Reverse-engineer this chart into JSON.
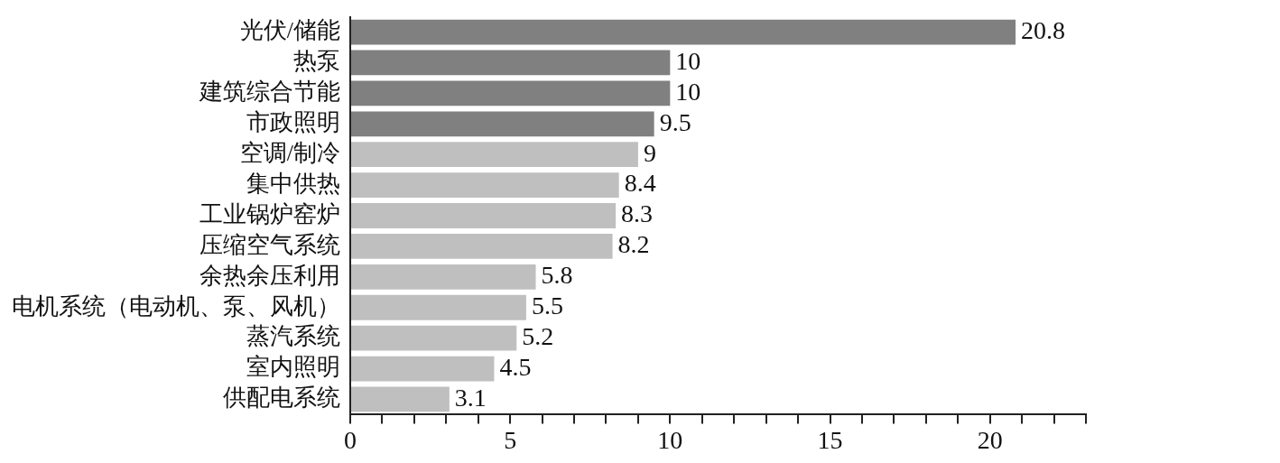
{
  "chart_data": {
    "type": "bar",
    "orientation": "horizontal",
    "categories": [
      "光伏/储能",
      "热泵",
      "建筑综合节能",
      "市政照明",
      "空调/制冷",
      "集中供热",
      "工业锅炉窑炉",
      "压缩空气系统",
      "余热余压利用",
      "电机系统（电动机、泵、风机）",
      "蒸汽系统",
      "室内照明",
      "供配电系统"
    ],
    "values": [
      20.8,
      10,
      10,
      9.5,
      9,
      8.4,
      8.3,
      8.2,
      5.8,
      5.5,
      5.2,
      4.5,
      3.1
    ],
    "colors": [
      "#808080",
      "#808080",
      "#808080",
      "#808080",
      "#bfbfbf",
      "#bfbfbf",
      "#bfbfbf",
      "#bfbfbf",
      "#bfbfbf",
      "#bfbfbf",
      "#bfbfbf",
      "#bfbfbf",
      "#bfbfbf"
    ],
    "xlim": [
      0,
      23
    ],
    "xticks": [
      0,
      {
        "value": 1,
        "label": null
      },
      {
        "value": 2,
        "label": null
      },
      {
        "value": 3,
        "label": null
      },
      {
        "value": 4,
        "label": null
      },
      5,
      {
        "value": 6,
        "label": null
      },
      {
        "value": 7,
        "label": null
      },
      {
        "value": 8,
        "label": null
      },
      {
        "value": 9,
        "label": null
      },
      10,
      {
        "value": 11,
        "label": null
      },
      {
        "value": 12,
        "label": null
      },
      {
        "value": 13,
        "label": null
      },
      {
        "value": 14,
        "label": null
      },
      15,
      {
        "value": 16,
        "label": null
      },
      {
        "value": 17,
        "label": null
      },
      {
        "value": 18,
        "label": null
      },
      {
        "value": 19,
        "label": null
      },
      20,
      {
        "value": 21,
        "label": null
      },
      {
        "value": 22,
        "label": null
      },
      {
        "value": 23,
        "label": null
      }
    ],
    "data_labels": true,
    "grid": false,
    "legend": false
  }
}
